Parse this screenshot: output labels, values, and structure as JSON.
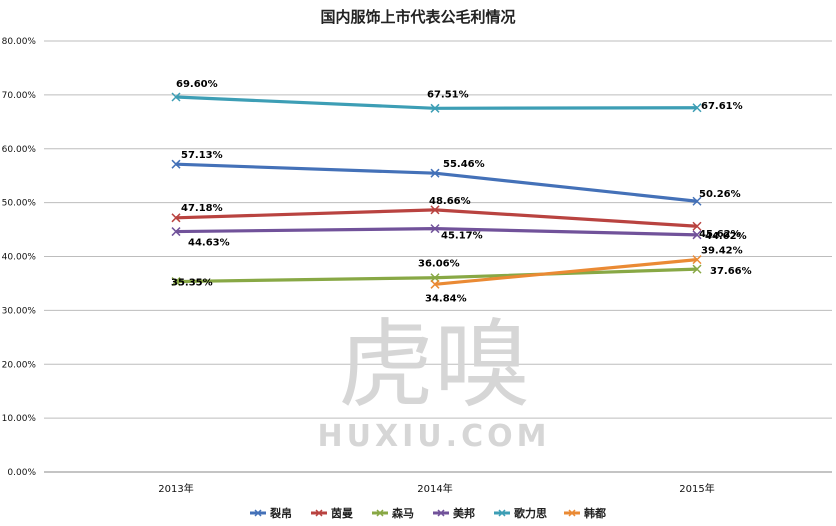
{
  "chart_data": {
    "type": "line",
    "title": "国内服饰上市代表公毛利情况",
    "xlabel": "",
    "ylabel": "",
    "categories": [
      "2013年",
      "2014年",
      "2015年"
    ],
    "ylim": [
      0,
      80
    ],
    "yticks": [
      "0.00%",
      "10.00%",
      "20.00%",
      "30.00%",
      "40.00%",
      "50.00%",
      "60.00%",
      "70.00%",
      "80.00%"
    ],
    "grid": true,
    "legend_position": "bottom",
    "series": [
      {
        "name": "裂帛",
        "color": "#4471b8",
        "values": [
          57.13,
          55.46,
          50.26
        ],
        "labels": [
          "57.13%",
          "55.46%",
          "50.26%"
        ]
      },
      {
        "name": "茵曼",
        "color": "#b94340",
        "values": [
          47.18,
          48.66,
          45.62
        ],
        "labels": [
          "47.18%",
          "48.66%",
          "45.62%"
        ]
      },
      {
        "name": "森马",
        "color": "#88a845",
        "values": [
          35.35,
          36.06,
          37.66
        ],
        "labels": [
          "35.35%",
          "36.06%",
          "37.66%"
        ]
      },
      {
        "name": "美邦",
        "color": "#71529a",
        "values": [
          44.63,
          45.17,
          44.02
        ],
        "labels": [
          "44.63%",
          "45.17%",
          "44.02%"
        ]
      },
      {
        "name": "歌力思",
        "color": "#3d9eb5",
        "values": [
          69.6,
          67.51,
          67.61
        ],
        "labels": [
          "69.60%",
          "67.51%",
          "67.61%"
        ]
      },
      {
        "name": "韩都",
        "color": "#ea8a34",
        "values": [
          null,
          34.84,
          39.42
        ],
        "labels": [
          null,
          "34.84%",
          "39.42%"
        ]
      }
    ]
  },
  "watermark": {
    "main": "虎嗅",
    "sub": "HUXIU.COM"
  }
}
